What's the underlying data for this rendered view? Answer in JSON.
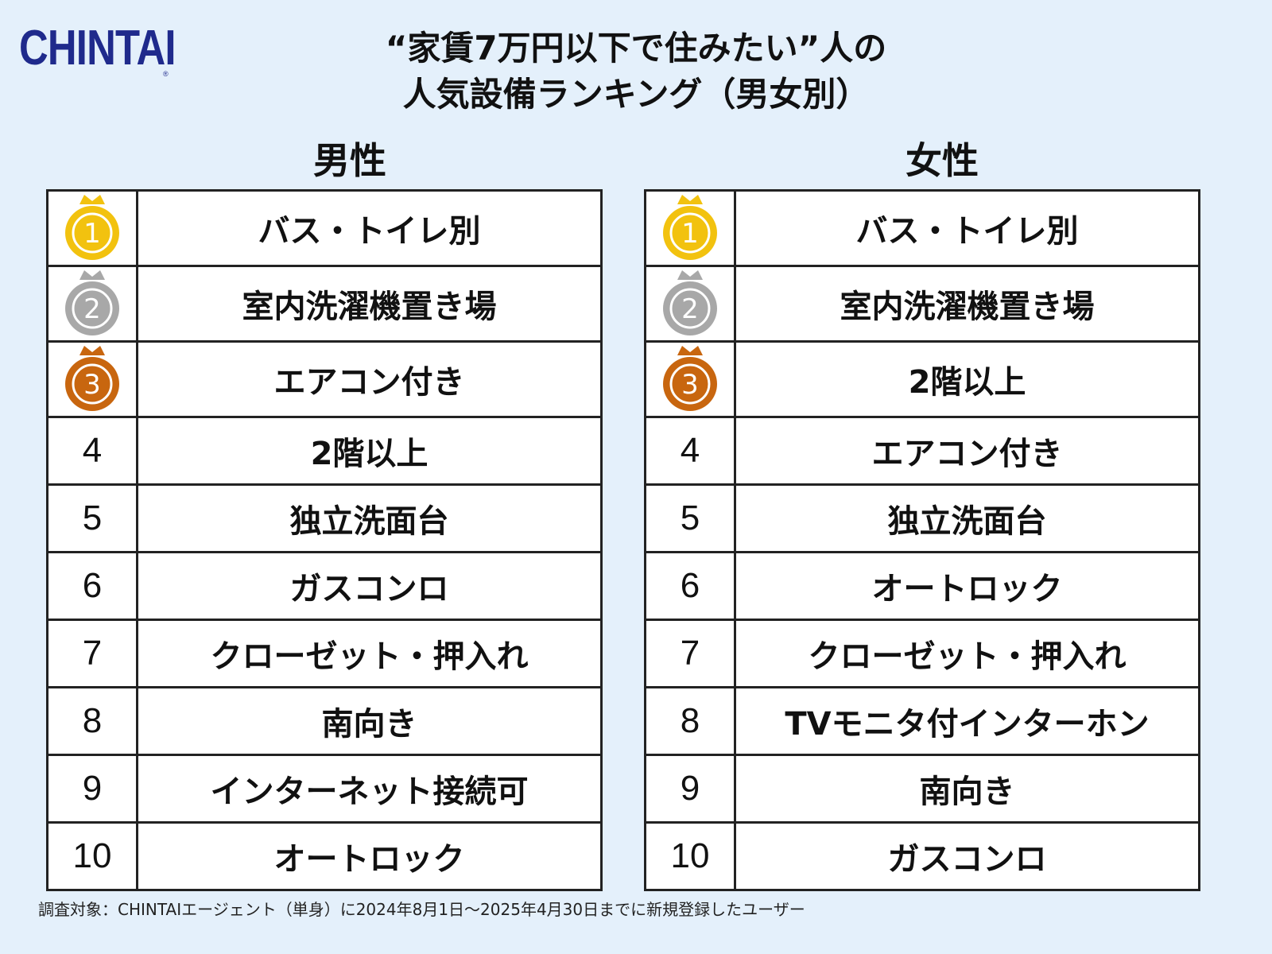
{
  "logo": {
    "text": "CHINTAI",
    "mark": "®"
  },
  "title": {
    "line1": "“家賃7万円以下で住みたい”人の",
    "line2": "人気設備ランキング（男女別）"
  },
  "colors": {
    "background": "#e4f0fb",
    "brand": "#1f2a8c",
    "gold": "#f2c20f",
    "silver": "#a8a8a8",
    "bronze": "#c8660f"
  },
  "men": {
    "heading": "男性",
    "rows": [
      {
        "rank": "1",
        "medal": "gold-medal-icon",
        "item": "バス・トイレ別"
      },
      {
        "rank": "2",
        "medal": "silver-medal-icon",
        "item": "室内洗濯機置き場"
      },
      {
        "rank": "3",
        "medal": "bronze-medal-icon",
        "item": "エアコン付き"
      },
      {
        "rank": "4",
        "item": "2階以上"
      },
      {
        "rank": "5",
        "item": "独立洗面台"
      },
      {
        "rank": "6",
        "item": "ガスコンロ"
      },
      {
        "rank": "7",
        "item": "クローゼット・押入れ"
      },
      {
        "rank": "8",
        "item": "南向き"
      },
      {
        "rank": "9",
        "item": "インターネット接続可"
      },
      {
        "rank": "10",
        "item": "オートロック"
      }
    ]
  },
  "women": {
    "heading": "女性",
    "rows": [
      {
        "rank": "1",
        "medal": "gold-medal-icon",
        "item": "バス・トイレ別"
      },
      {
        "rank": "2",
        "medal": "silver-medal-icon",
        "item": "室内洗濯機置き場"
      },
      {
        "rank": "3",
        "medal": "bronze-medal-icon",
        "item": "2階以上"
      },
      {
        "rank": "4",
        "item": "エアコン付き"
      },
      {
        "rank": "5",
        "item": "独立洗面台"
      },
      {
        "rank": "6",
        "item": "オートロック"
      },
      {
        "rank": "7",
        "item": "クローゼット・押入れ"
      },
      {
        "rank": "8",
        "item": "TVモニタ付インターホン"
      },
      {
        "rank": "9",
        "item": "南向き"
      },
      {
        "rank": "10",
        "item": "ガスコンロ"
      }
    ]
  },
  "footnote": "調査対象：CHINTAIエージェント（単身）に2024年8月1日〜2025年4月30日までに新規登録したユーザー"
}
